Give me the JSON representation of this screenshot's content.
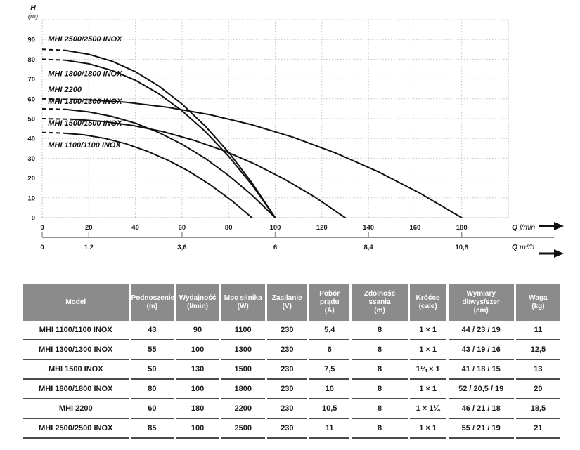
{
  "colors": {
    "curve": "#111111",
    "grid": "#c0c0c0",
    "secondary_axis_line": "#8f8f8f",
    "table_header_bg": "#8b8b8b",
    "table_header_text": "#ffffff",
    "table_row_border": "#4a4a4a",
    "text": "#1a1a1a"
  },
  "chart_data": {
    "type": "line",
    "title": "",
    "ylabel": "H",
    "ylabel_unit": "(m)",
    "xlabel_primary": "Q l/min",
    "xlabel_secondary": "Q m³/h",
    "xlim_lmin": [
      0,
      200
    ],
    "ylim_m": [
      0,
      100
    ],
    "grid": true,
    "y_ticks": [
      0,
      10,
      20,
      30,
      40,
      50,
      60,
      70,
      80,
      90
    ],
    "x_ticks_lmin": [
      0,
      20,
      40,
      60,
      80,
      100,
      120,
      140,
      160,
      180
    ],
    "x_ticks_m3h": [
      {
        "label": "0",
        "q_lmin": 0
      },
      {
        "label": "1,2",
        "q_lmin": 20
      },
      {
        "label": "3,6",
        "q_lmin": 60
      },
      {
        "label": "6",
        "q_lmin": 100
      },
      {
        "label": "8,4",
        "q_lmin": 140
      },
      {
        "label": "10,8",
        "q_lmin": 180
      }
    ],
    "axis_q_symbol": "Q",
    "axis_lmin_unit": "l/min",
    "axis_m3h_unit": "m³/h",
    "series": [
      {
        "name": "MHI 2500/2500 INOX",
        "max_head_m": 85,
        "max_flow_lmin": 100,
        "label_pos": {
          "q": 2.5,
          "h": 89
        },
        "points": [
          [
            0,
            85
          ],
          [
            10,
            84.5
          ],
          [
            20,
            82.5
          ],
          [
            30,
            79
          ],
          [
            40,
            73.7
          ],
          [
            50,
            66.5
          ],
          [
            60,
            57.4
          ],
          [
            70,
            46.2
          ],
          [
            80,
            33
          ],
          [
            90,
            17.6
          ],
          [
            100,
            0
          ]
        ]
      },
      {
        "name": "MHI 1800/1800 INOX",
        "max_head_m": 80,
        "max_flow_lmin": 100,
        "label_pos": {
          "q": 2.5,
          "h": 71.5
        },
        "points": [
          [
            0,
            80
          ],
          [
            10,
            79.5
          ],
          [
            20,
            77.7
          ],
          [
            30,
            74.3
          ],
          [
            40,
            69.4
          ],
          [
            50,
            62.6
          ],
          [
            60,
            54
          ],
          [
            70,
            43.5
          ],
          [
            80,
            31
          ],
          [
            90,
            16.6
          ],
          [
            100,
            0
          ]
        ]
      },
      {
        "name": "MHI 2200",
        "max_head_m": 60,
        "max_flow_lmin": 180,
        "label_pos": {
          "q": 2.5,
          "h": 63.5
        },
        "points": [
          [
            0,
            60
          ],
          [
            18,
            59.6
          ],
          [
            36,
            58.3
          ],
          [
            54,
            55.7
          ],
          [
            72,
            52
          ],
          [
            90,
            46.9
          ],
          [
            108,
            40.5
          ],
          [
            126,
            32.6
          ],
          [
            144,
            23.3
          ],
          [
            162,
            12.4
          ],
          [
            180,
            0
          ]
        ]
      },
      {
        "name": "MHI 1300/1300 INOX",
        "max_head_m": 55,
        "max_flow_lmin": 100,
        "label_pos": {
          "q": 2.5,
          "h": 57.5
        },
        "points": [
          [
            0,
            55
          ],
          [
            10,
            54.7
          ],
          [
            20,
            53.4
          ],
          [
            30,
            51.1
          ],
          [
            40,
            47.7
          ],
          [
            50,
            43
          ],
          [
            60,
            37.1
          ],
          [
            70,
            29.9
          ],
          [
            80,
            21.3
          ],
          [
            90,
            11.4
          ],
          [
            100,
            0
          ]
        ]
      },
      {
        "name": "MHI 1500/1500 INOX",
        "max_head_m": 50,
        "max_flow_lmin": 130,
        "label_pos": {
          "q": 2.5,
          "h": 46.5
        },
        "points": [
          [
            0,
            50
          ],
          [
            13,
            49.7
          ],
          [
            26,
            48.6
          ],
          [
            39,
            46.5
          ],
          [
            52,
            43.4
          ],
          [
            65,
            39.1
          ],
          [
            78,
            33.8
          ],
          [
            91,
            27.2
          ],
          [
            104,
            19.4
          ],
          [
            117,
            10.4
          ],
          [
            130,
            0
          ]
        ]
      },
      {
        "name": "MHI 1100/1100 INOX",
        "max_head_m": 43,
        "max_flow_lmin": 90,
        "label_pos": {
          "q": 2.5,
          "h": 35.5
        },
        "points": [
          [
            0,
            43
          ],
          [
            9,
            42.7
          ],
          [
            18,
            41.8
          ],
          [
            27,
            40
          ],
          [
            36,
            37.3
          ],
          [
            45,
            33.6
          ],
          [
            54,
            29
          ],
          [
            63,
            23.4
          ],
          [
            72,
            16.7
          ],
          [
            81,
            8.9
          ],
          [
            90,
            0
          ]
        ]
      }
    ]
  },
  "table": {
    "headers": [
      {
        "label": "Model",
        "unit": "",
        "width_pct": 21.0
      },
      {
        "label": "Podnoszenie",
        "unit": "(m)",
        "width_pct": 8.5
      },
      {
        "label": "Wydajność",
        "unit": "(l/min)",
        "width_pct": 8.5
      },
      {
        "label": "Moc silnika",
        "unit": "(W)",
        "width_pct": 8.5
      },
      {
        "label": "Zasilanie",
        "unit": "(V)",
        "width_pct": 7.9
      },
      {
        "label": "Pobór prądu",
        "unit": "(A)",
        "width_pct": 7.9
      },
      {
        "label": "Zdolność ssania",
        "unit": "(m)",
        "width_pct": 11.0
      },
      {
        "label": "Króćce",
        "unit": "(cale)",
        "width_pct": 7.1
      },
      {
        "label": "Wymiary dł/wys/szer",
        "unit": "(cm)",
        "width_pct": 13.0
      },
      {
        "label": "Waga",
        "unit": "(kg)",
        "width_pct": 8.7
      }
    ],
    "rows": [
      [
        "MHI 1100/1100 INOX",
        "43",
        "90",
        "1100",
        "230",
        "5,4",
        "8",
        "1 × 1",
        "44 / 23 / 19",
        "11"
      ],
      [
        "MHI 1300/1300 INOX",
        "55",
        "100",
        "1300",
        "230",
        "6",
        "8",
        "1 × 1",
        "43 / 19 / 16",
        "12,5"
      ],
      [
        "MHI 1500 INOX",
        "50",
        "130",
        "1500",
        "230",
        "7,5",
        "8",
        "1¼ × 1",
        "41 / 18 / 15",
        "13"
      ],
      [
        "MHI 1800/1800 INOX",
        "80",
        "100",
        "1800",
        "230",
        "10",
        "8",
        "1 × 1",
        "52 / 20,5 / 19",
        "20"
      ],
      [
        "MHI 2200",
        "60",
        "180",
        "2200",
        "230",
        "10,5",
        "8",
        "1 × 1¼",
        "46 / 21 / 18",
        "18,5"
      ],
      [
        "MHI 2500/2500 INOX",
        "85",
        "100",
        "2500",
        "230",
        "11",
        "8",
        "1 × 1",
        "55 / 21 / 19",
        "21"
      ]
    ]
  }
}
